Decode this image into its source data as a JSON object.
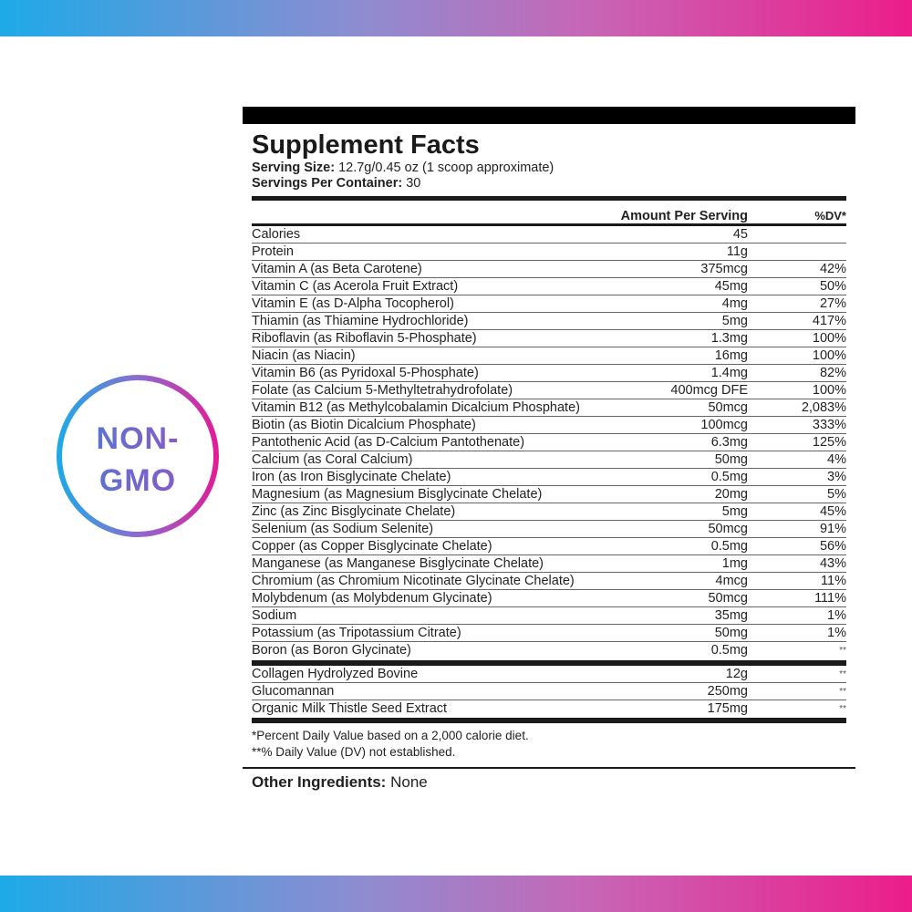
{
  "colors": {
    "gradient_start": "#1ea9e7",
    "gradient_end": "#ec1d8b"
  },
  "badge": {
    "line1": "NON-",
    "line2": "GMO"
  },
  "label": {
    "title": "Supplement Facts",
    "serving_size_label": "Serving Size:",
    "serving_size_value": " 12.7g/0.45 oz (1 scoop approximate)",
    "servings_label": "Servings Per Container:",
    "servings_value": " 30",
    "col_amount": "Amount Per Serving",
    "col_dv": "%DV*",
    "nutrients": [
      {
        "name": "Calories",
        "amount": "45",
        "dv": ""
      },
      {
        "name": "Protein",
        "amount": "11g",
        "dv": ""
      },
      {
        "name": "Vitamin A (as Beta Carotene)",
        "amount": "375mcg",
        "dv": "42%"
      },
      {
        "name": "Vitamin C (as Acerola Fruit Extract)",
        "amount": "45mg",
        "dv": "50%"
      },
      {
        "name": "Vitamin E (as D-Alpha Tocopherol)",
        "amount": "4mg",
        "dv": "27%"
      },
      {
        "name": "Thiamin (as Thiamine Hydrochloride)",
        "amount": "5mg",
        "dv": "417%"
      },
      {
        "name": "Riboflavin (as Riboflavin 5-Phosphate)",
        "amount": "1.3mg",
        "dv": "100%"
      },
      {
        "name": "Niacin (as Niacin)",
        "amount": "16mg",
        "dv": "100%"
      },
      {
        "name": "Vitamin B6 (as Pyridoxal 5-Phosphate)",
        "amount": "1.4mg",
        "dv": "82%"
      },
      {
        "name": "Folate (as Calcium 5-Methyltetrahydrofolate)",
        "amount": "400mcg DFE",
        "dv": "100%"
      },
      {
        "name": "Vitamin B12 (as Methylcobalamin Dicalcium Phosphate)",
        "amount": "50mcg",
        "dv": "2,083%"
      },
      {
        "name": "Biotin (as Biotin Dicalcium Phosphate)",
        "amount": "100mcg",
        "dv": "333%"
      },
      {
        "name": "Pantothenic Acid (as D-Calcium Pantothenate)",
        "amount": "6.3mg",
        "dv": "125%"
      },
      {
        "name": "Calcium (as Coral Calcium)",
        "amount": "50mg",
        "dv": "4%"
      },
      {
        "name": "Iron (as Iron Bisglycinate Chelate)",
        "amount": "0.5mg",
        "dv": "3%"
      },
      {
        "name": "Magnesium (as Magnesium Bisglycinate Chelate)",
        "amount": "20mg",
        "dv": "5%"
      },
      {
        "name": "Zinc (as Zinc Bisglycinate Chelate)",
        "amount": "5mg",
        "dv": "45%"
      },
      {
        "name": "Selenium (as Sodium Selenite)",
        "amount": "50mcg",
        "dv": "91%"
      },
      {
        "name": "Copper (as Copper Bisglycinate Chelate)",
        "amount": "0.5mg",
        "dv": "56%"
      },
      {
        "name": "Manganese (as Manganese Bisglycinate Chelate)",
        "amount": "1mg",
        "dv": "43%"
      },
      {
        "name": "Chromium (as Chromium Nicotinate Glycinate Chelate)",
        "amount": "4mcg",
        "dv": "11%"
      },
      {
        "name": "Molybdenum (as Molybdenum Glycinate)",
        "amount": "50mcg",
        "dv": "111%"
      },
      {
        "name": "Sodium",
        "amount": "35mg",
        "dv": "1%"
      },
      {
        "name": "Potassium (as Tripotassium Citrate)",
        "amount": "50mg",
        "dv": "1%"
      },
      {
        "name": "Boron (as Boron Glycinate)",
        "amount": "0.5mg",
        "dv": "**"
      }
    ],
    "other_items": [
      {
        "name": "Collagen Hydrolyzed Bovine",
        "amount": "12g",
        "dv": "**"
      },
      {
        "name": "Glucomannan",
        "amount": "250mg",
        "dv": "**"
      },
      {
        "name": "Organic Milk Thistle Seed Extract",
        "amount": "175mg",
        "dv": "**"
      }
    ],
    "footnote1": "*Percent Daily Value based on a 2,000 calorie diet.",
    "footnote2": "**% Daily Value (DV) not established.",
    "other_ingredients_label": "Other Ingredients:",
    "other_ingredients_value": " None"
  }
}
